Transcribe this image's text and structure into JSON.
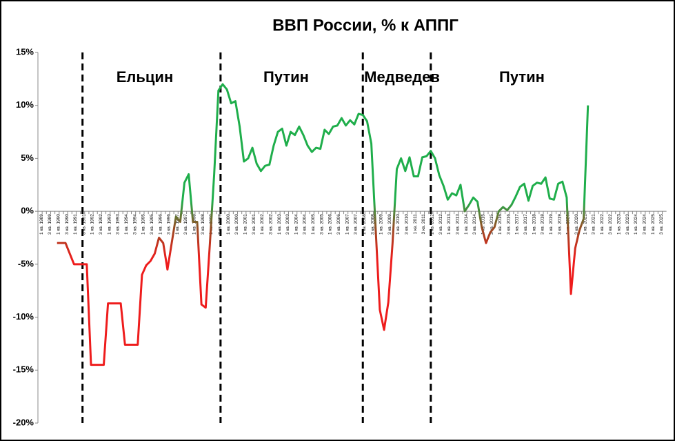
{
  "chart_data": {
    "type": "line",
    "title": "ВВП России, % к АППГ",
    "annotations": [
      "Ельцин",
      "Путин",
      "Медведев",
      "Путин"
    ],
    "categories": [
      "1 кв. 1989",
      null,
      "3 кв. 1989",
      null,
      "1 кв. 1990",
      null,
      "3 кв. 1990",
      null,
      "1 кв. 1991",
      null,
      "3 кв. 1991",
      null,
      "1 кв. 1992",
      null,
      "3 кв. 1992",
      null,
      "1 кв. 1993",
      null,
      "3 кв. 1993",
      null,
      "1 кв. 1994",
      null,
      "3 кв. 1994",
      null,
      "1 кв. 1995",
      null,
      "3 кв. 1995",
      null,
      "1 кв. 1996",
      null,
      "3 кв. 1996",
      null,
      "1 кв. 1997",
      null,
      "3 кв. 1997",
      null,
      "1 кв. 1998",
      null,
      "3 кв. 1998",
      null,
      "1 кв. 1999",
      null,
      "3 кв. 1999",
      null,
      "1 кв. 2000",
      null,
      "3 кв. 2000",
      null,
      "1 кв. 2001",
      null,
      "3 кв. 2001",
      null,
      "1 кв. 2002",
      null,
      "3 кв. 2002",
      null,
      "1 кв. 2003",
      null,
      "3 кв. 2003",
      null,
      "1 кв. 2004",
      null,
      "3 кв. 2004",
      null,
      "1 кв. 2005",
      null,
      "3 кв. 2005",
      null,
      "1 кв. 2006",
      null,
      "3 кв. 2006",
      null,
      "1 кв. 2007",
      null,
      "3 кв. 2007",
      null,
      "1 кв. 2008",
      null,
      "3 кв. 2008",
      null,
      "1 кв. 2009",
      null,
      "3 кв. 2009",
      null,
      "1 кв. 2010",
      null,
      "3 кв. 2010",
      null,
      "1 кв. 2011",
      null,
      "3 кв. 2011",
      null,
      "1 кв. 2012",
      null,
      "3 кв. 2012",
      null,
      "1 кв. 2013",
      null,
      "3 кв. 2013",
      null,
      "1 кв. 2014",
      null,
      "3 кв. 2014",
      null,
      "1 кв. 2015",
      null,
      "3 кв. 2015",
      null,
      "1 кв. 2016",
      null,
      "3 кв. 2016",
      null,
      "1 кв. 2017",
      null,
      "3 кв. 2017",
      null,
      "1 кв. 2018",
      null,
      "3 кв. 2018",
      null,
      "1 кв. 2019",
      null,
      "3 кв. 2019",
      null,
      "1 кв. 2020",
      null,
      "3 кв. 2020",
      null,
      "1 кв. 2021",
      null,
      "3 кв. 2021",
      null,
      "1 кв. 2022",
      null,
      "3 кв. 2022",
      null,
      "1 кв. 2023",
      null,
      "3 кв. 2023",
      null,
      "1 кв. 2024",
      null,
      "3 кв. 2024",
      null,
      "1 кв. 2025",
      null,
      "3 кв. 2025",
      null
    ],
    "values": [
      null,
      null,
      null,
      null,
      -3,
      -3,
      -3,
      -4,
      -5,
      -5,
      -5,
      -5,
      -14.5,
      -14.5,
      -14.5,
      -14.5,
      -8.7,
      -8.7,
      -8.7,
      -8.7,
      -12.6,
      -12.6,
      -12.6,
      -12.6,
      -6.0,
      -5.1,
      -4.7,
      -4.0,
      -2.5,
      -3.0,
      -5.5,
      -3.0,
      -0.5,
      -1.0,
      2.7,
      3.5,
      -1.0,
      -1.0,
      -8.8,
      -9.1,
      -3.0,
      3.5,
      11.4,
      12.0,
      11.5,
      10.2,
      10.4,
      8.0,
      4.7,
      5.0,
      6.0,
      4.5,
      3.8,
      4.3,
      4.4,
      6.2,
      7.5,
      7.8,
      6.2,
      7.5,
      7.2,
      8.0,
      7.2,
      6.2,
      5.6,
      6.0,
      5.9,
      7.7,
      7.3,
      8.0,
      8.1,
      8.8,
      8.1,
      8.6,
      8.2,
      9.2,
      9.1,
      8.5,
      6.4,
      -1.5,
      -9.3,
      -11.2,
      -8.6,
      -3.0,
      4.0,
      5.0,
      3.8,
      5.1,
      3.3,
      3.3,
      5.1,
      5.2,
      5.7,
      5.0,
      3.4,
      2.4,
      1.1,
      1.7,
      1.5,
      2.5,
      0.0,
      0.6,
      1.3,
      0.9,
      -1.5,
      -3.0,
      -2.0,
      -1.5,
      0.0,
      0.4,
      0.1,
      0.6,
      1.4,
      2.3,
      2.6,
      1.0,
      2.4,
      2.7,
      2.6,
      3.2,
      1.2,
      1.1,
      2.6,
      2.8,
      1.3,
      -7.8,
      -3.5,
      -1.8,
      -0.7,
      10.0,
      null,
      null,
      null,
      null,
      null,
      null,
      null,
      null,
      null,
      null,
      null,
      null,
      null,
      null,
      null,
      null,
      null,
      null
    ],
    "colors": {
      "positive": "#1fae4b",
      "negative": "#ee1c1c"
    },
    "ylim": [
      -20,
      15
    ],
    "yticks": [
      {
        "value": -20,
        "label": "-20%"
      },
      {
        "value": -15,
        "label": "-15%"
      },
      {
        "value": -10,
        "label": "-10%"
      },
      {
        "value": -5,
        "label": "-5%"
      },
      {
        "value": 0,
        "label": "0%"
      },
      {
        "value": 5,
        "label": "5%"
      },
      {
        "value": 10,
        "label": "10%"
      },
      {
        "value": 15,
        "label": "15%"
      }
    ],
    "grid": false
  }
}
